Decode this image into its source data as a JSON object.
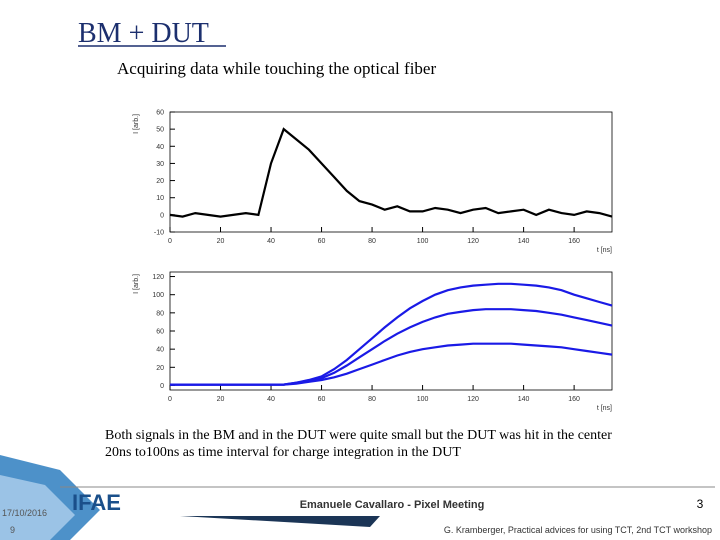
{
  "slide": {
    "title": "BM + DUT",
    "subtitle": "Acquiring data while touching the optical fiber",
    "body": [
      "Both signals in the BM and in the DUT were quite small but the DUT was hit in the center",
      "20ns to100ns as time interval for charge integration in the DUT"
    ],
    "footer": {
      "logo": "IFAE",
      "presenter": "Emanuele Cavallaro - Pixel Meeting",
      "inner_page": "3",
      "date": "17/10/2016",
      "page": "9",
      "credit": "G. Kramberger, Practical advices for using TCT, 2nd TCT workshop"
    }
  },
  "chart_data": [
    {
      "type": "line",
      "ylabel": "I [arb.]",
      "xlabel": "t [ns]",
      "x": [
        0,
        5,
        10,
        15,
        20,
        25,
        30,
        35,
        40,
        45,
        50,
        55,
        60,
        65,
        70,
        75,
        80,
        85,
        90,
        95,
        100,
        105,
        110,
        115,
        120,
        125,
        130,
        135,
        140,
        145,
        150,
        155,
        160,
        165,
        170,
        175
      ],
      "series": [
        {
          "color": "#000000",
          "values": [
            0,
            -1,
            1,
            0,
            -1,
            0,
            1,
            0,
            30,
            50,
            44,
            38,
            30,
            22,
            14,
            8,
            6,
            3,
            5,
            2,
            2,
            4,
            3,
            1,
            3,
            4,
            1,
            2,
            3,
            0,
            3,
            1,
            0,
            2,
            1,
            -1
          ]
        }
      ],
      "xlim": [
        0,
        175
      ],
      "ylim": [
        -10,
        60
      ],
      "xticks": [
        0,
        20,
        40,
        60,
        80,
        100,
        120,
        140,
        160
      ],
      "yticks": [
        -10,
        0,
        10,
        20,
        30,
        40,
        50,
        60
      ]
    },
    {
      "type": "line",
      "ylabel": "I [arb.]",
      "xlabel": "t [ns]",
      "x": [
        0,
        5,
        10,
        15,
        20,
        25,
        30,
        35,
        40,
        45,
        50,
        55,
        60,
        65,
        70,
        75,
        80,
        85,
        90,
        95,
        100,
        105,
        110,
        115,
        120,
        125,
        130,
        135,
        140,
        145,
        150,
        155,
        160,
        165,
        170,
        175
      ],
      "series": [
        {
          "color": "#1a1ae6",
          "values": [
            1,
            1,
            1,
            1,
            1,
            1,
            1,
            1,
            1,
            1,
            3,
            6,
            10,
            18,
            28,
            40,
            52,
            64,
            75,
            85,
            93,
            100,
            105,
            108,
            110,
            111,
            112,
            112,
            111,
            110,
            108,
            105,
            100,
            96,
            92,
            88
          ]
        },
        {
          "color": "#1a1ae6",
          "values": [
            1,
            1,
            1,
            1,
            1,
            1,
            1,
            1,
            1,
            1,
            3,
            5,
            8,
            14,
            22,
            31,
            40,
            49,
            57,
            64,
            70,
            75,
            79,
            81,
            83,
            84,
            84,
            84,
            83,
            82,
            80,
            78,
            75,
            72,
            69,
            66
          ]
        },
        {
          "color": "#1a1ae6",
          "values": [
            1,
            1,
            1,
            1,
            1,
            1,
            1,
            1,
            1,
            1,
            2,
            4,
            6,
            9,
            13,
            18,
            23,
            28,
            33,
            37,
            40,
            42,
            44,
            45,
            46,
            46,
            46,
            46,
            45,
            44,
            43,
            42,
            40,
            38,
            36,
            34
          ]
        }
      ],
      "xlim": [
        0,
        175
      ],
      "ylim": [
        -5,
        125
      ],
      "xticks": [
        0,
        20,
        40,
        60,
        80,
        100,
        120,
        140,
        160
      ],
      "yticks": [
        0,
        20,
        40,
        60,
        80,
        100,
        120
      ]
    }
  ]
}
